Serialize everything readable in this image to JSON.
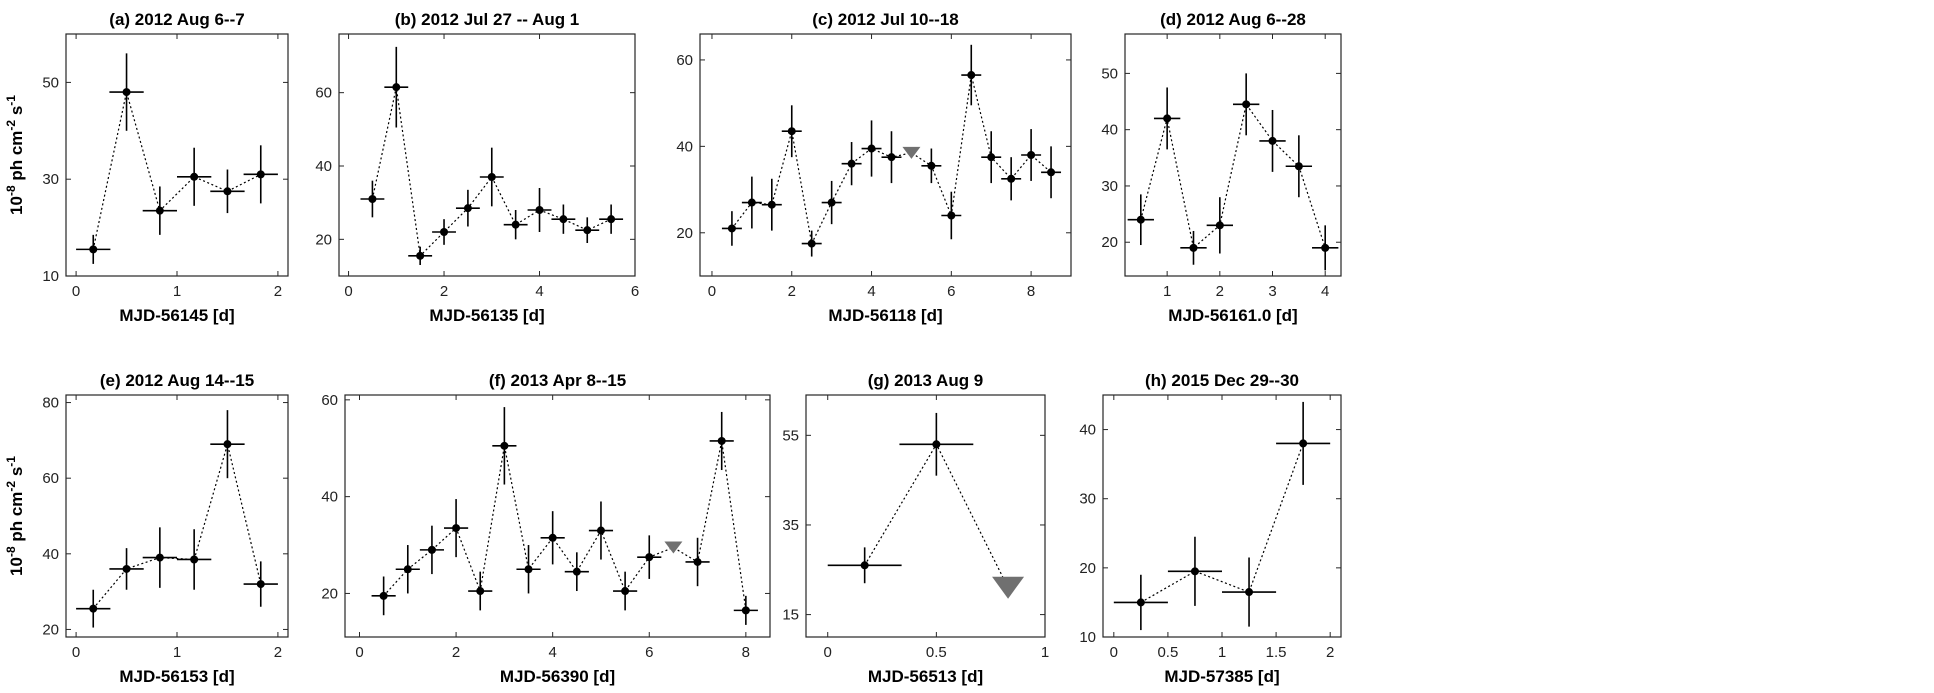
{
  "colors": {
    "point": "#000000",
    "upper_limit": "#707070",
    "axis": "#262626",
    "link": "#000000"
  },
  "chart_data": [
    {
      "type": "scatter",
      "panel": "a",
      "title": "(a) 2012 Aug 6--7",
      "xlabel": "MJD-56145 [d]",
      "ylabel": "10-8 ph cm-2 s-1",
      "xlim": [
        -0.1,
        2.1
      ],
      "ylim": [
        10,
        60
      ],
      "xticks": [
        0,
        1,
        2
      ],
      "yticks": [
        10,
        30,
        50
      ],
      "points": [
        {
          "x": 0.17,
          "y": 15.5,
          "xerr": 0.17,
          "yerr": 3
        },
        {
          "x": 0.5,
          "y": 48,
          "xerr": 0.17,
          "yerr": 8
        },
        {
          "x": 0.83,
          "y": 23.5,
          "xerr": 0.17,
          "yerr": 5
        },
        {
          "x": 1.17,
          "y": 30.5,
          "xerr": 0.17,
          "yerr": 6
        },
        {
          "x": 1.5,
          "y": 27.5,
          "xerr": 0.17,
          "yerr": 4.5
        },
        {
          "x": 1.83,
          "y": 31,
          "xerr": 0.17,
          "yerr": 6
        }
      ],
      "upper_limits": []
    },
    {
      "type": "scatter",
      "panel": "b",
      "title": "(b) 2012 Jul 27 -- Aug 1",
      "xlabel": "MJD-56135 [d]",
      "ylabel": "",
      "xlim": [
        -0.2,
        6
      ],
      "ylim": [
        10,
        76
      ],
      "xticks": [
        0,
        2,
        4,
        6
      ],
      "yticks": [
        20,
        40,
        60
      ],
      "points": [
        {
          "x": 0.5,
          "y": 31,
          "xerr": 0.25,
          "yerr": 5
        },
        {
          "x": 1.0,
          "y": 61.5,
          "xerr": 0.25,
          "yerr": 11
        },
        {
          "x": 1.5,
          "y": 15.5,
          "xerr": 0.25,
          "yerr": 2.5
        },
        {
          "x": 2.0,
          "y": 22,
          "xerr": 0.25,
          "yerr": 3.5
        },
        {
          "x": 2.5,
          "y": 28.5,
          "xerr": 0.25,
          "yerr": 5
        },
        {
          "x": 3.0,
          "y": 37,
          "xerr": 0.25,
          "yerr": 8
        },
        {
          "x": 3.5,
          "y": 24,
          "xerr": 0.25,
          "yerr": 4
        },
        {
          "x": 4.0,
          "y": 28,
          "xerr": 0.25,
          "yerr": 6
        },
        {
          "x": 4.5,
          "y": 25.5,
          "xerr": 0.25,
          "yerr": 4
        },
        {
          "x": 5.0,
          "y": 22.5,
          "xerr": 0.25,
          "yerr": 3.5
        },
        {
          "x": 5.5,
          "y": 25.5,
          "xerr": 0.25,
          "yerr": 4
        }
      ],
      "upper_limits": []
    },
    {
      "type": "scatter",
      "panel": "c",
      "title": "(c) 2012 Jul 10--18",
      "xlabel": "MJD-56118 [d]",
      "ylabel": "",
      "xlim": [
        -0.3,
        9
      ],
      "ylim": [
        10,
        66
      ],
      "xticks": [
        0,
        2,
        4,
        6,
        8
      ],
      "yticks": [
        20,
        40,
        60
      ],
      "points": [
        {
          "x": 0.5,
          "y": 21,
          "xerr": 0.25,
          "yerr": 4
        },
        {
          "x": 1.0,
          "y": 27,
          "xerr": 0.25,
          "yerr": 6
        },
        {
          "x": 1.5,
          "y": 26.5,
          "xerr": 0.25,
          "yerr": 6
        },
        {
          "x": 2.0,
          "y": 43.5,
          "xerr": 0.25,
          "yerr": 6
        },
        {
          "x": 2.5,
          "y": 17.5,
          "xerr": 0.25,
          "yerr": 3
        },
        {
          "x": 3.0,
          "y": 27,
          "xerr": 0.25,
          "yerr": 5
        },
        {
          "x": 3.5,
          "y": 36,
          "xerr": 0.25,
          "yerr": 5
        },
        {
          "x": 4.0,
          "y": 39.5,
          "xerr": 0.25,
          "yerr": 6.5
        },
        {
          "x": 4.5,
          "y": 37.5,
          "xerr": 0.25,
          "yerr": 6
        },
        {
          "x": 5.5,
          "y": 35.5,
          "xerr": 0.25,
          "yerr": 4
        },
        {
          "x": 6.0,
          "y": 24,
          "xerr": 0.25,
          "yerr": 5.5
        },
        {
          "x": 6.5,
          "y": 56.5,
          "xerr": 0.25,
          "yerr": 7
        },
        {
          "x": 7.0,
          "y": 37.5,
          "xerr": 0.25,
          "yerr": 6
        },
        {
          "x": 7.5,
          "y": 32.5,
          "xerr": 0.25,
          "yerr": 5
        },
        {
          "x": 8.0,
          "y": 38,
          "xerr": 0.25,
          "yerr": 6
        },
        {
          "x": 8.5,
          "y": 34,
          "xerr": 0.25,
          "yerr": 6
        }
      ],
      "upper_limits": [
        {
          "x": 5.0,
          "y": 38.5
        }
      ]
    },
    {
      "type": "scatter",
      "panel": "d",
      "title": "(d) 2012 Aug 6--28",
      "xlabel": "MJD-56161.0 [d]",
      "ylabel": "",
      "xlim": [
        0.2,
        4.3
      ],
      "ylim": [
        14,
        57
      ],
      "xticks": [
        1,
        2,
        3,
        4
      ],
      "yticks": [
        20,
        30,
        40,
        50
      ],
      "points": [
        {
          "x": 0.5,
          "y": 24,
          "xerr": 0.25,
          "yerr": 4.5
        },
        {
          "x": 1.0,
          "y": 42,
          "xerr": 0.25,
          "yerr": 5.5
        },
        {
          "x": 1.5,
          "y": 19,
          "xerr": 0.25,
          "yerr": 3
        },
        {
          "x": 2.0,
          "y": 23,
          "xerr": 0.25,
          "yerr": 5
        },
        {
          "x": 2.5,
          "y": 44.5,
          "xerr": 0.25,
          "yerr": 5.5
        },
        {
          "x": 3.0,
          "y": 38,
          "xerr": 0.25,
          "yerr": 5.5
        },
        {
          "x": 3.5,
          "y": 33.5,
          "xerr": 0.25,
          "yerr": 5.5
        },
        {
          "x": 4.0,
          "y": 19,
          "xerr": 0.25,
          "yerr": 4
        }
      ],
      "upper_limits": []
    },
    {
      "type": "scatter",
      "panel": "e",
      "title": "(e) 2012 Aug 14--15",
      "xlabel": "MJD-56153 [d]",
      "ylabel": "10-8 ph cm-2 s-1",
      "xlim": [
        -0.1,
        2.1
      ],
      "ylim": [
        18,
        82
      ],
      "xticks": [
        0,
        1,
        2
      ],
      "yticks": [
        20,
        40,
        60,
        80
      ],
      "points": [
        {
          "x": 0.17,
          "y": 25.5,
          "xerr": 0.17,
          "yerr": 5
        },
        {
          "x": 0.5,
          "y": 36,
          "xerr": 0.17,
          "yerr": 5.5
        },
        {
          "x": 0.83,
          "y": 39,
          "xerr": 0.17,
          "yerr": 8
        },
        {
          "x": 1.17,
          "y": 38.5,
          "xerr": 0.17,
          "yerr": 8
        },
        {
          "x": 1.5,
          "y": 69,
          "xerr": 0.17,
          "yerr": 9
        },
        {
          "x": 1.83,
          "y": 32,
          "xerr": 0.17,
          "yerr": 6
        }
      ],
      "upper_limits": []
    },
    {
      "type": "scatter",
      "panel": "f",
      "title": "(f) 2013 Apr 8--15",
      "xlabel": "MJD-56390 [d]",
      "ylabel": "",
      "xlim": [
        -0.3,
        8.5
      ],
      "ylim": [
        11,
        61
      ],
      "xticks": [
        0,
        2,
        4,
        6,
        8
      ],
      "yticks": [
        20,
        40,
        60
      ],
      "points": [
        {
          "x": 0.5,
          "y": 19.5,
          "xerr": 0.25,
          "yerr": 4
        },
        {
          "x": 1.0,
          "y": 25,
          "xerr": 0.25,
          "yerr": 5
        },
        {
          "x": 1.5,
          "y": 29,
          "xerr": 0.25,
          "yerr": 5
        },
        {
          "x": 2.0,
          "y": 33.5,
          "xerr": 0.25,
          "yerr": 6
        },
        {
          "x": 2.5,
          "y": 20.5,
          "xerr": 0.25,
          "yerr": 4
        },
        {
          "x": 3.0,
          "y": 50.5,
          "xerr": 0.25,
          "yerr": 8
        },
        {
          "x": 3.5,
          "y": 25,
          "xerr": 0.25,
          "yerr": 5
        },
        {
          "x": 4.0,
          "y": 31.5,
          "xerr": 0.25,
          "yerr": 5.5
        },
        {
          "x": 4.5,
          "y": 24.5,
          "xerr": 0.25,
          "yerr": 4
        },
        {
          "x": 5.0,
          "y": 33,
          "xerr": 0.25,
          "yerr": 6
        },
        {
          "x": 5.5,
          "y": 20.5,
          "xerr": 0.25,
          "yerr": 4
        },
        {
          "x": 6.0,
          "y": 27.5,
          "xerr": 0.25,
          "yerr": 4.5
        },
        {
          "x": 7.0,
          "y": 26.5,
          "xerr": 0.25,
          "yerr": 5
        },
        {
          "x": 7.5,
          "y": 51.5,
          "xerr": 0.25,
          "yerr": 6
        },
        {
          "x": 8.0,
          "y": 16.5,
          "xerr": 0.25,
          "yerr": 3
        }
      ],
      "upper_limits": [
        {
          "x": 6.5,
          "y": 29.5
        }
      ]
    },
    {
      "type": "scatter",
      "panel": "g",
      "title": "(g) 2013 Aug 9",
      "xlabel": "MJD-56513 [d]",
      "ylabel": "",
      "xlim": [
        -0.1,
        1.0
      ],
      "ylim": [
        10,
        64
      ],
      "xticks": [
        0,
        0.5,
        1
      ],
      "yticks": [
        15,
        35,
        55
      ],
      "points": [
        {
          "x": 0.17,
          "y": 26,
          "xerr": 0.17,
          "yerr": 4
        },
        {
          "x": 0.5,
          "y": 53,
          "xerr": 0.17,
          "yerr": 7
        }
      ],
      "upper_limits": [
        {
          "x": 0.83,
          "y": 21
        }
      ]
    },
    {
      "type": "scatter",
      "panel": "h",
      "title": "(h) 2015 Dec 29--30",
      "xlabel": "MJD-57385 [d]",
      "ylabel": "",
      "xlim": [
        -0.1,
        2.1
      ],
      "ylim": [
        10,
        45
      ],
      "xticks": [
        0,
        0.5,
        1,
        1.5,
        2
      ],
      "yticks": [
        10,
        20,
        30,
        40
      ],
      "points": [
        {
          "x": 0.25,
          "y": 15,
          "xerr": 0.25,
          "yerr": 4
        },
        {
          "x": 0.75,
          "y": 19.5,
          "xerr": 0.25,
          "yerr": 5
        },
        {
          "x": 1.25,
          "y": 16.5,
          "xerr": 0.25,
          "yerr": 5
        },
        {
          "x": 1.75,
          "y": 38,
          "xerr": 0.25,
          "yerr": 6
        }
      ],
      "upper_limits": []
    }
  ]
}
